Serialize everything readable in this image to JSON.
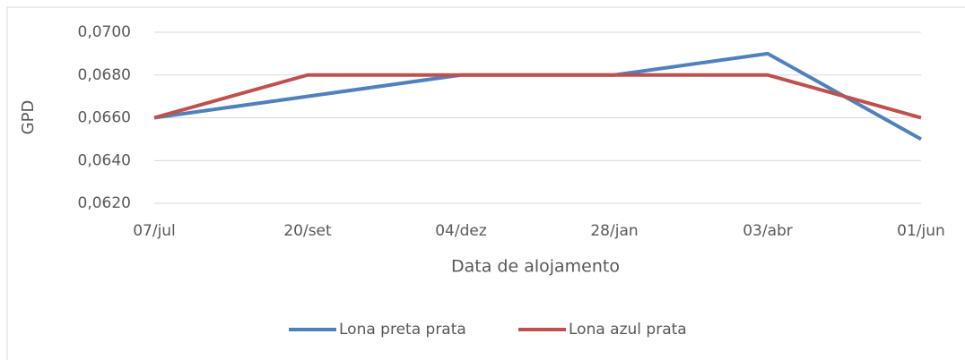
{
  "chart_data": {
    "type": "line",
    "categories": [
      "07/jul",
      "20/set",
      "04/dez",
      "28/jan",
      "03/abr",
      "01/jun"
    ],
    "series": [
      {
        "name": "Lona preta prata",
        "color": "#4f81bd",
        "values": [
          0.066,
          0.067,
          0.068,
          0.068,
          0.069,
          0.065
        ]
      },
      {
        "name": "Lona azul prata",
        "color": "#c0504d",
        "values": [
          0.066,
          0.068,
          0.068,
          0.068,
          0.068,
          0.066
        ]
      }
    ],
    "xlabel": "Data de alojamento",
    "ylabel": "GPD",
    "ylim": [
      0.062,
      0.07
    ],
    "yticks": [
      {
        "value": 0.062,
        "label": "0,0620"
      },
      {
        "value": 0.064,
        "label": "0,0640"
      },
      {
        "value": 0.066,
        "label": "0,0660"
      },
      {
        "value": 0.068,
        "label": "0,0680"
      },
      {
        "value": 0.07,
        "label": "0,0700"
      }
    ],
    "grid": true,
    "legend": "bottom"
  }
}
